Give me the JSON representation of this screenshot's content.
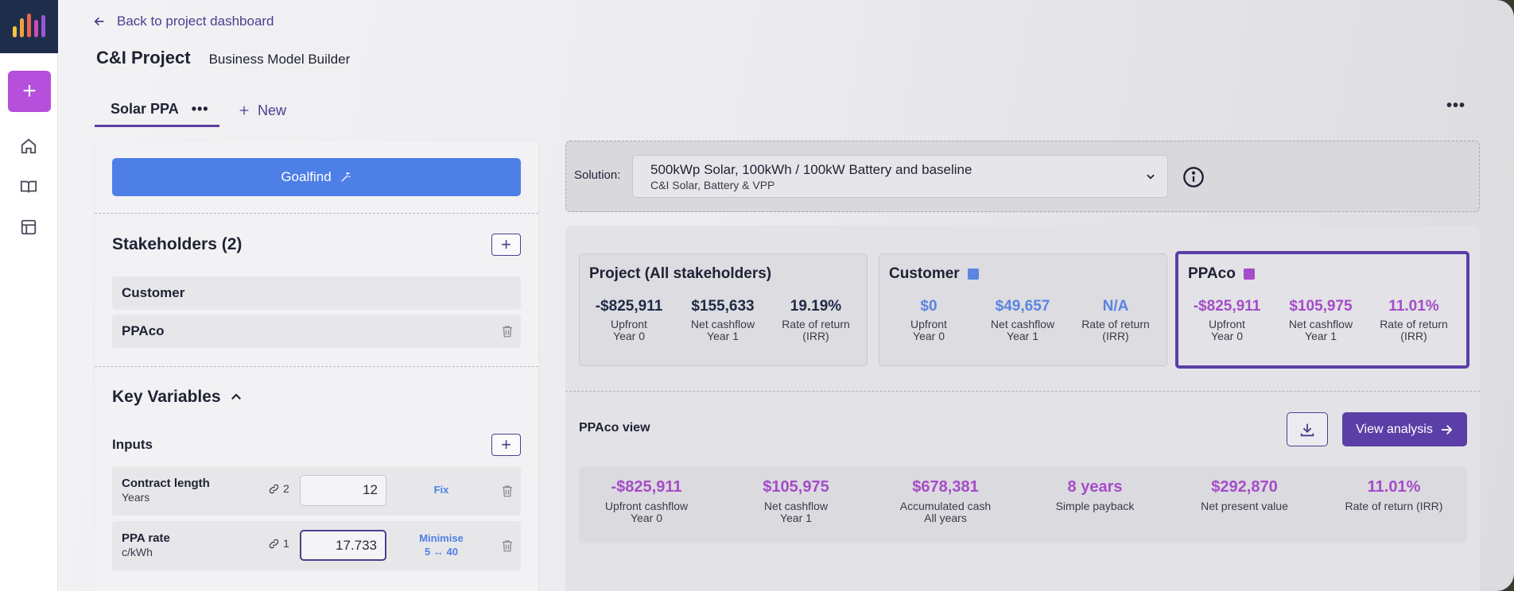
{
  "nav": {
    "back_label": "Back to project dashboard",
    "project_title": "C&I Project",
    "project_subtitle": "Business Model Builder"
  },
  "tabs": {
    "active_label": "Solar PPA",
    "new_label": "New"
  },
  "left": {
    "goalfind_label": "Goalfind",
    "stakeholders_title": "Stakeholders (2)",
    "stakeholders": [
      "Customer",
      "PPAco"
    ],
    "key_variables_title": "Key Variables",
    "inputs_title": "Inputs",
    "variables": [
      {
        "name": "Contract length",
        "unit": "Years",
        "links": "2",
        "value": "12",
        "mode": "Fix",
        "mode_range": ""
      },
      {
        "name": "PPA rate",
        "unit": "c/kWh",
        "links": "1",
        "value": "17.733",
        "mode": "Minimise",
        "mode_range": "5 ↔ 40"
      }
    ]
  },
  "solution": {
    "label": "Solution:",
    "selected": "500kWp Solar, 100kWh / 100kW Battery and baseline",
    "subtitle": "C&I Solar, Battery & VPP"
  },
  "stakeholder_cards": [
    {
      "title": "Project (All stakeholders)",
      "metrics": [
        {
          "value": "-$825,911",
          "label1": "Upfront",
          "label2": "Year 0"
        },
        {
          "value": "$155,633",
          "label1": "Net cashflow",
          "label2": "Year 1"
        },
        {
          "value": "19.19%",
          "label1": "Rate of return",
          "label2": "(IRR)"
        }
      ]
    },
    {
      "title": "Customer",
      "color": "#5b85e0",
      "metrics": [
        {
          "value": "$0",
          "label1": "Upfront",
          "label2": "Year 0"
        },
        {
          "value": "$49,657",
          "label1": "Net cashflow",
          "label2": "Year 1"
        },
        {
          "value": "N/A",
          "label1": "Rate of return",
          "label2": "(IRR)"
        }
      ]
    },
    {
      "title": "PPAco",
      "color": "#a54cc8",
      "metrics": [
        {
          "value": "-$825,911",
          "label1": "Upfront",
          "label2": "Year 0"
        },
        {
          "value": "$105,975",
          "label1": "Net cashflow",
          "label2": "Year 1"
        },
        {
          "value": "11.01%",
          "label1": "Rate of return",
          "label2": "(IRR)"
        }
      ]
    }
  ],
  "view": {
    "title": "PPAco view",
    "analysis_label": "View analysis",
    "summary": [
      {
        "value": "-$825,911",
        "label1": "Upfront cashflow",
        "label2": "Year 0"
      },
      {
        "value": "$105,975",
        "label1": "Net cashflow",
        "label2": "Year 1"
      },
      {
        "value": "$678,381",
        "label1": "Accumulated cash",
        "label2": "All years"
      },
      {
        "value": "8 years",
        "label1": "Simple payback",
        "label2": ""
      },
      {
        "value": "$292,870",
        "label1": "Net present value",
        "label2": ""
      },
      {
        "value": "11.01%",
        "label1": "Rate of return (IRR)",
        "label2": ""
      }
    ]
  }
}
